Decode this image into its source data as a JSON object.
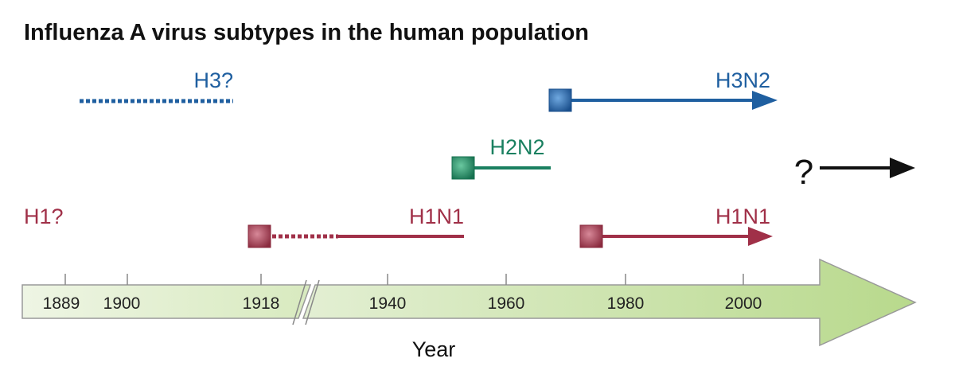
{
  "title": "Influenza A virus subtypes in the human population",
  "axis": {
    "ticks": [
      "1889",
      "1900",
      "1918",
      "1940",
      "1960",
      "1980",
      "2000"
    ],
    "label": "Year"
  },
  "lineages": [
    {
      "label": "H3?"
    },
    {
      "label": "H3N2"
    },
    {
      "label": "H2N2"
    },
    {
      "label": "H1?"
    },
    {
      "label": "H1N1"
    },
    {
      "label": "H1N1"
    }
  ],
  "future": {
    "label": "?"
  }
}
